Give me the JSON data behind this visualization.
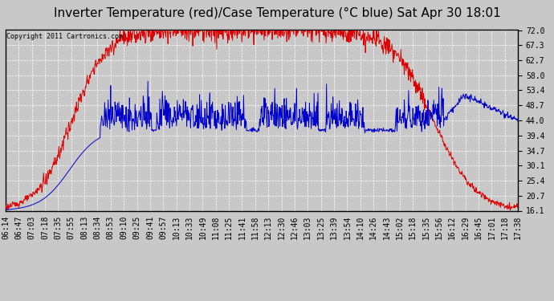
{
  "title": "Inverter Temperature (red)/Case Temperature (°C blue) Sat Apr 30 18:01",
  "copyright": "Copyright 2011 Cartronics.com",
  "yticks": [
    16.1,
    20.7,
    25.4,
    30.1,
    34.7,
    39.4,
    44.0,
    48.7,
    53.4,
    58.0,
    62.7,
    67.3,
    72.0
  ],
  "ymin": 16.1,
  "ymax": 72.0,
  "xtick_labels": [
    "06:14",
    "06:47",
    "07:03",
    "07:18",
    "07:35",
    "07:55",
    "08:13",
    "08:34",
    "08:53",
    "09:10",
    "09:25",
    "09:41",
    "09:57",
    "10:13",
    "10:33",
    "10:49",
    "11:08",
    "11:25",
    "11:41",
    "11:58",
    "12:13",
    "12:30",
    "12:46",
    "13:03",
    "13:25",
    "13:39",
    "13:54",
    "14:10",
    "14:26",
    "14:43",
    "15:02",
    "15:18",
    "15:35",
    "15:56",
    "16:12",
    "16:29",
    "16:45",
    "17:01",
    "17:18",
    "17:38"
  ],
  "bg_color": "#c8c8c8",
  "plot_bg_color": "#c8c8c8",
  "grid_color": "#ffffff",
  "red_color": "#dd0000",
  "blue_color": "#0000cc",
  "title_fontsize": 11,
  "tick_fontsize": 7,
  "copyright_fontsize": 6
}
